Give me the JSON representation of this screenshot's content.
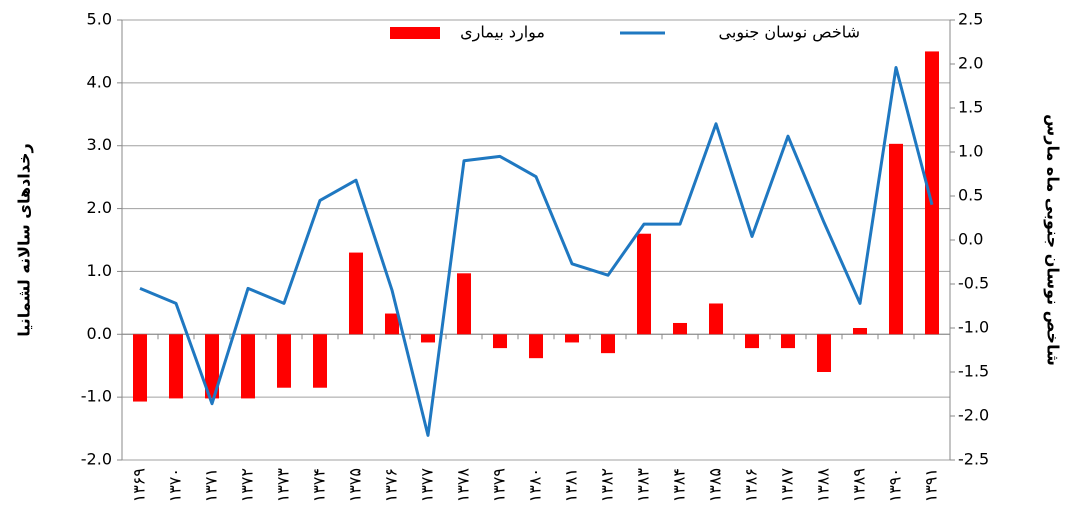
{
  "chart_data": {
    "type": "bar",
    "categories": [
      "۱۳۶۹",
      "۱۳۷۰",
      "۱۳۷۱",
      "۱۳۷۲",
      "۱۳۷۳",
      "۱۳۷۴",
      "۱۳۷۵",
      "۱۳۷۶",
      "۱۳۷۷",
      "۱۳۷۸",
      "۱۳۷۹",
      "۱۳۸۰",
      "۱۳۸۱",
      "۱۳۸۲",
      "۱۳۸۳",
      "۱۳۸۴",
      "۱۳۸۵",
      "۱۳۸۶",
      "۱۳۸۷",
      "۱۳۸۸",
      "۱۳۸۹",
      "۱۳۹۰",
      "۱۳۹۱"
    ],
    "series": [
      {
        "name": "موارد بیماری",
        "type": "bar",
        "color": "#ff0000",
        "values": [
          -1.07,
          -1.02,
          -1.02,
          -1.02,
          -0.85,
          -0.85,
          1.3,
          0.33,
          -0.13,
          0.97,
          -0.22,
          -0.38,
          -0.13,
          -0.3,
          1.6,
          0.18,
          0.49,
          -0.22,
          -0.22,
          -0.6,
          0.1,
          3.03,
          4.5
        ]
      },
      {
        "name": "شاخص نوسان جنوبی",
        "type": "line",
        "axis": "y2",
        "color": "#1f78c1",
        "values": [
          -0.55,
          -0.72,
          -1.86,
          -0.55,
          -0.72,
          0.45,
          0.68,
          -0.57,
          -2.22,
          0.9,
          0.95,
          0.72,
          -0.27,
          -0.4,
          0.18,
          0.18,
          1.32,
          0.04,
          1.18,
          0.2,
          -0.72,
          1.96,
          0.4
        ]
      }
    ],
    "ylabel": "رخدادهای سالانه لشمانیا",
    "y2label": "شاخص نوسان جنوبی ماه مارس",
    "ylim": [
      -2,
      5
    ],
    "yticks": [
      {
        "value": -2,
        "label": "-2.0"
      },
      {
        "value": -1,
        "label": "-1.0"
      },
      {
        "value": 0,
        "label": "0.0"
      },
      {
        "value": 1,
        "label": "1.0"
      },
      {
        "value": 2,
        "label": "2.0"
      },
      {
        "value": 3,
        "label": "3.0"
      },
      {
        "value": 4,
        "label": "4.0"
      },
      {
        "value": 5,
        "label": "5.0"
      }
    ],
    "y2lim": [
      -2.5,
      2.5
    ],
    "y2ticks": [
      {
        "value": -2.5,
        "label": "-2.5"
      },
      {
        "value": -2,
        "label": "-2.0"
      },
      {
        "value": -1.5,
        "label": "-1.5"
      },
      {
        "value": -1,
        "label": "-1.0"
      },
      {
        "value": -0.5,
        "label": "-0.5"
      },
      {
        "value": 0,
        "label": "0.0"
      },
      {
        "value": 0.5,
        "label": "0.5"
      },
      {
        "value": 1,
        "label": "1.0"
      },
      {
        "value": 1.5,
        "label": "1.5"
      },
      {
        "value": 2,
        "label": "2.0"
      },
      {
        "value": 2.5,
        "label": "2.5"
      }
    ],
    "grid": true
  }
}
